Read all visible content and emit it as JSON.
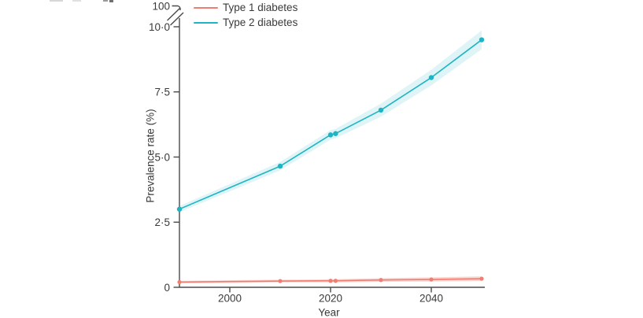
{
  "figure": {
    "y_axis": {
      "label": "Prevalence rate (%)",
      "tick_labels": [
        "0",
        "2·5",
        "5·0",
        "7·5",
        "10·0"
      ],
      "tick_values": [
        0,
        2.5,
        5.0,
        7.5,
        10.0
      ],
      "broken_axis_top_tick": "100",
      "range": [
        0,
        10
      ]
    },
    "x_axis": {
      "label": "Year",
      "tick_labels": [
        "2000",
        "2020",
        "2040"
      ],
      "tick_years": [
        2000,
        2020,
        2040
      ],
      "range": [
        1990,
        2050
      ]
    },
    "legend": {
      "items": [
        {
          "label": "Type 1 diabetes",
          "color": "#ee7e72"
        },
        {
          "label": "Type 2 diabetes",
          "color": "#1fb4c3"
        }
      ]
    }
  },
  "chart_data": {
    "type": "line",
    "title": "",
    "xlabel": "Year",
    "ylabel": "Prevalence rate (%)",
    "x": [
      1990,
      2010,
      2020,
      2021,
      2030,
      2040,
      2050
    ],
    "series": [
      {
        "name": "Type 1 diabetes",
        "color": "#ee7e72",
        "band_color": "rgba(238,126,114,0.32)",
        "values": [
          0.2,
          0.24,
          0.25,
          0.25,
          0.28,
          0.3,
          0.33
        ],
        "ci_halfwidth": [
          0.05,
          0.05,
          0.06,
          0.06,
          0.07,
          0.08,
          0.09
        ]
      },
      {
        "name": "Type 2 diabetes",
        "color": "#1fb4c3",
        "band_color": "rgba(31,180,195,0.15)",
        "values": [
          3.0,
          4.65,
          5.85,
          5.9,
          6.8,
          8.05,
          9.5
        ],
        "ci_halfwidth": [
          0.12,
          0.16,
          0.18,
          0.18,
          0.25,
          0.3,
          0.36
        ]
      }
    ],
    "ylim": [
      0,
      10
    ],
    "xlim": [
      1990,
      2050
    ],
    "y_axis_break": {
      "upper_tick": 100
    },
    "markers": true,
    "grid": false,
    "legend_position": "top-left"
  },
  "colors": {
    "axis": "#4a4a4a",
    "text": "#3a3a3a",
    "background": "#ffffff"
  }
}
